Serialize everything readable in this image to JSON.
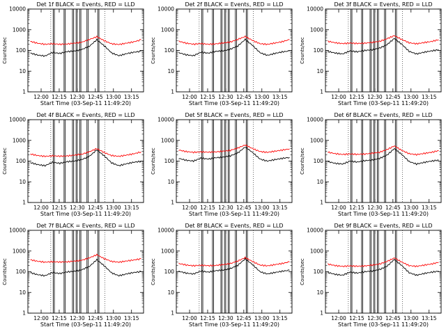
{
  "chart_data": [
    {
      "type": "line",
      "title": "Det 1f BLACK = Events, RED = LLD",
      "xlabel": "Start Time (03-Sep-11 11:49:20)",
      "ylabel": "Counts/sec",
      "ylim": [
        1,
        10000
      ],
      "yscale": "log",
      "yticks": [
        "1",
        "10",
        "100",
        "1000",
        "10000"
      ],
      "xticks": [
        "12:00",
        "12:15",
        "12:30",
        "12:45",
        "13:00",
        "13:15"
      ],
      "grid": false,
      "legend": "none",
      "series": [
        {
          "name": "Events",
          "color": "#000000",
          "values": [
            75,
            60,
            54,
            80,
            72,
            88,
            94,
            112,
            160,
            330,
            170,
            76,
            56,
            70,
            82,
            92
          ]
        },
        {
          "name": "LLD",
          "color": "#ff0000",
          "values": [
            275,
            222,
            198,
            212,
            198,
            205,
            226,
            252,
            340,
            460,
            300,
            210,
            195,
            225,
            260,
            330
          ]
        }
      ]
    },
    {
      "type": "line",
      "title": "Det 2f BLACK = Events, RED = LLD",
      "xlabel": "Start Time (03-Sep-11 11:49:20)",
      "ylabel": "Counts/sec",
      "ylim": [
        1,
        10000
      ],
      "yscale": "log",
      "yticks": [
        "1",
        "10",
        "100",
        "1000",
        "10000"
      ],
      "xticks": [
        "12:00",
        "12:15",
        "12:30",
        "12:45",
        "13:00",
        "13:15"
      ],
      "grid": false,
      "legend": "none",
      "series": [
        {
          "name": "Events",
          "color": "#000000",
          "values": [
            78,
            62,
            56,
            82,
            74,
            90,
            96,
            115,
            165,
            340,
            175,
            78,
            58,
            72,
            85,
            95
          ]
        },
        {
          "name": "LLD",
          "color": "#ff0000",
          "values": [
            280,
            225,
            200,
            215,
            200,
            208,
            230,
            255,
            345,
            470,
            305,
            212,
            198,
            228,
            265,
            335
          ]
        }
      ]
    },
    {
      "type": "line",
      "title": "Det 3f BLACK = Events, RED = LLD",
      "xlabel": "Start Time (03-Sep-11 11:49:20)",
      "ylabel": "Counts/sec",
      "ylim": [
        1,
        10000
      ],
      "yscale": "log",
      "yticks": [
        "1",
        "10",
        "100",
        "1000",
        "10000"
      ],
      "xticks": [
        "12:00",
        "12:15",
        "12:30",
        "12:45",
        "13:00",
        "13:15"
      ],
      "grid": false,
      "legend": "none",
      "series": [
        {
          "name": "Events",
          "color": "#000000",
          "values": [
            90,
            75,
            68,
            95,
            86,
            100,
            108,
            130,
            190,
            380,
            200,
            90,
            68,
            82,
            95,
            108
          ]
        },
        {
          "name": "LLD",
          "color": "#ff0000",
          "values": [
            280,
            235,
            215,
            228,
            218,
            225,
            246,
            275,
            370,
            520,
            340,
            235,
            210,
            240,
            270,
            330
          ]
        }
      ]
    },
    {
      "type": "line",
      "title": "Det 4f BLACK = Events, RED = LLD",
      "xlabel": "Start Time (03-Sep-11 11:49:20)",
      "ylabel": "Counts/sec",
      "ylim": [
        1,
        10000
      ],
      "yscale": "log",
      "yticks": [
        "1",
        "10",
        "100",
        "1000",
        "10000"
      ],
      "xticks": [
        "12:00",
        "12:15",
        "12:30",
        "12:45",
        "13:00",
        "13:15"
      ],
      "grid": false,
      "legend": "none",
      "series": [
        {
          "name": "Events",
          "color": "#000000",
          "values": [
            85,
            68,
            60,
            88,
            78,
            94,
            100,
            120,
            170,
            350,
            180,
            82,
            60,
            74,
            88,
            98
          ]
        },
        {
          "name": "LLD",
          "color": "#ff0000",
          "values": [
            220,
            185,
            170,
            180,
            172,
            178,
            195,
            215,
            285,
            400,
            260,
            185,
            170,
            195,
            225,
            280
          ]
        }
      ]
    },
    {
      "type": "line",
      "title": "Det 5f BLACK = Events, RED = LLD",
      "xlabel": "Start Time (03-Sep-11 11:49:20)",
      "ylabel": "Counts/sec",
      "ylim": [
        1,
        10000
      ],
      "yscale": "log",
      "yticks": [
        "1",
        "10",
        "100",
        "1000",
        "10000"
      ],
      "xticks": [
        "12:00",
        "12:15",
        "12:30",
        "12:45",
        "13:00",
        "13:15"
      ],
      "grid": false,
      "legend": "none",
      "series": [
        {
          "name": "Events",
          "color": "#000000",
          "values": [
            135,
            110,
            100,
            140,
            125,
            145,
            155,
            180,
            250,
            480,
            260,
            125,
            100,
            118,
            135,
            150
          ]
        },
        {
          "name": "LLD",
          "color": "#ff0000",
          "values": [
            340,
            290,
            265,
            280,
            270,
            278,
            300,
            330,
            430,
            600,
            400,
            290,
            265,
            300,
            340,
            390
          ]
        }
      ]
    },
    {
      "type": "line",
      "title": "Det 6f BLACK = Events, RED = LLD",
      "xlabel": "Start Time (03-Sep-11 11:49:20)",
      "ylabel": "Counts/sec",
      "ylim": [
        1,
        10000
      ],
      "yscale": "log",
      "yticks": [
        "1",
        "10",
        "100",
        "1000",
        "10000"
      ],
      "xticks": [
        "12:00",
        "12:15",
        "12:30",
        "12:45",
        "13:00",
        "13:15"
      ],
      "grid": false,
      "legend": "none",
      "series": [
        {
          "name": "Events",
          "color": "#000000",
          "values": [
            95,
            78,
            72,
            100,
            90,
            105,
            112,
            135,
            195,
            400,
            210,
            95,
            72,
            86,
            100,
            112
          ]
        },
        {
          "name": "LLD",
          "color": "#ff0000",
          "values": [
            270,
            228,
            210,
            222,
            212,
            220,
            240,
            268,
            360,
            540,
            330,
            228,
            205,
            235,
            265,
            320
          ]
        }
      ]
    },
    {
      "type": "line",
      "title": "Det 7f BLACK = Events, RED = LLD",
      "xlabel": "Start Time (03-Sep-11 11:49:20)",
      "ylabel": "Counts/sec",
      "ylim": [
        1,
        10000
      ],
      "yscale": "log",
      "yticks": [
        "1",
        "10",
        "100",
        "1000",
        "10000"
      ],
      "xticks": [
        "12:00",
        "12:15",
        "12:30",
        "12:45",
        "13:00",
        "13:15"
      ],
      "grid": false,
      "legend": "none",
      "series": [
        {
          "name": "Events",
          "color": "#000000",
          "values": [
            90,
            72,
            64,
            92,
            82,
            98,
            105,
            125,
            180,
            380,
            195,
            88,
            64,
            78,
            92,
            102
          ]
        },
        {
          "name": "LLD",
          "color": "#ff0000",
          "values": [
            380,
            320,
            290,
            305,
            295,
            300,
            325,
            360,
            470,
            660,
            430,
            315,
            290,
            330,
            370,
            420
          ]
        }
      ]
    },
    {
      "type": "line",
      "title": "Det 8f BLACK = Events, RED = LLD",
      "xlabel": "Start Time (03-Sep-11 11:49:20)",
      "ylabel": "Counts/sec",
      "ylim": [
        1,
        10000
      ],
      "yscale": "log",
      "yticks": [
        "1",
        "10",
        "100",
        "1000",
        "10000"
      ],
      "xticks": [
        "12:00",
        "12:15",
        "12:30",
        "12:45",
        "13:00",
        "13:15"
      ],
      "grid": false,
      "legend": "none",
      "series": [
        {
          "name": "Events",
          "color": "#000000",
          "values": [
            105,
            86,
            78,
            108,
            96,
            112,
            120,
            142,
            205,
            420,
            220,
            100,
            78,
            92,
            106,
            118
          ]
        },
        {
          "name": "LLD",
          "color": "#ff0000",
          "values": [
            250,
            212,
            195,
            205,
            196,
            202,
            222,
            248,
            330,
            480,
            310,
            210,
            192,
            220,
            250,
            300
          ]
        }
      ]
    },
    {
      "type": "line",
      "title": "Det 9f BLACK = Events, RED = LLD",
      "xlabel": "Start Time (03-Sep-11 11:49:20)",
      "ylabel": "Counts/sec",
      "ylim": [
        1,
        10000
      ],
      "yscale": "log",
      "yticks": [
        "1",
        "10",
        "100",
        "1000",
        "10000"
      ],
      "xticks": [
        "12:00",
        "12:15",
        "12:30",
        "12:45",
        "13:00",
        "13:15"
      ],
      "grid": false,
      "legend": "none",
      "series": [
        {
          "name": "Events",
          "color": "#000000",
          "values": [
            92,
            75,
            68,
            96,
            86,
            100,
            108,
            128,
            185,
            390,
            200,
            90,
            68,
            82,
            95,
            106
          ]
        },
        {
          "name": "LLD",
          "color": "#ff0000",
          "values": [
            235,
            198,
            182,
            192,
            185,
            190,
            210,
            235,
            315,
            460,
            295,
            198,
            182,
            208,
            236,
            285
          ]
        }
      ]
    }
  ]
}
